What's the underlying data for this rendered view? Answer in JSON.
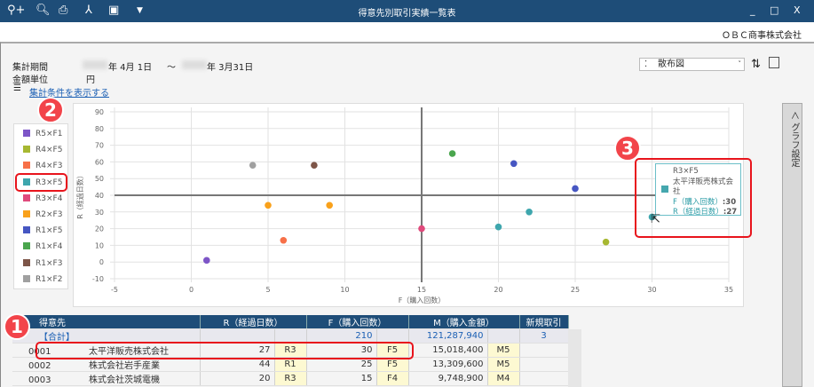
{
  "window": {
    "title": "得意先別取引実績一覧表",
    "toolbar_icons": [
      "zoom-in-icon",
      "preview-icon",
      "print-icon",
      "pdf-icon",
      "excel-icon",
      "dropdown-icon"
    ],
    "minimize": "_",
    "maximize": "□",
    "close": "X"
  },
  "company": "ＯＢＣ商事株式会社",
  "header": {
    "period_label": "集計期間",
    "period_start": "年  4月  1日",
    "tilde": "～",
    "period_end": "年  3月31日",
    "unit_label": "金額単位",
    "unit_value": "円",
    "show_conditions": "集計条件を表示する",
    "chart_type": "散布図"
  },
  "side_panel": {
    "label": "＜ グラフ設定"
  },
  "chart_data": {
    "type": "scatter",
    "xlabel": "F（購入回数）",
    "ylabel": "R（経過日数）",
    "xlim": [
      -5,
      35
    ],
    "ylim": [
      -10,
      90
    ],
    "xticks": [
      -5,
      0,
      5,
      10,
      15,
      20,
      25,
      30,
      35
    ],
    "yticks": [
      -10,
      0,
      10,
      20,
      30,
      40,
      50,
      60,
      70,
      80,
      90
    ],
    "grid": true,
    "legend_position": "left",
    "quadrant_lines": {
      "x": 15,
      "y": 40
    },
    "series": [
      {
        "name": "R5×F1",
        "color": "#7d55c7",
        "points": [
          [
            1,
            1
          ]
        ]
      },
      {
        "name": "R4×F5",
        "color": "#a7b832",
        "points": [
          [
            27,
            12
          ]
        ]
      },
      {
        "name": "R4×F3",
        "color": "#f77048",
        "points": [
          [
            6,
            13
          ]
        ]
      },
      {
        "name": "R3×F5",
        "color": "#3ea6ad",
        "points": [
          [
            20,
            21
          ],
          [
            22,
            30
          ],
          [
            30,
            27
          ]
        ]
      },
      {
        "name": "R3×F4",
        "color": "#e04a7c",
        "points": [
          [
            15,
            20
          ]
        ]
      },
      {
        "name": "R2×F3",
        "color": "#f9a11b",
        "points": [
          [
            5,
            34
          ],
          [
            9,
            34
          ]
        ]
      },
      {
        "name": "R1×F5",
        "color": "#4656c2",
        "points": [
          [
            21,
            59
          ],
          [
            25,
            44
          ]
        ]
      },
      {
        "name": "R1×F4",
        "color": "#4aa64e",
        "points": [
          [
            17,
            65
          ]
        ]
      },
      {
        "name": "R1×F3",
        "color": "#7d5548",
        "points": [
          [
            8,
            58
          ]
        ]
      },
      {
        "name": "R1×F2",
        "color": "#a0a0a0",
        "points": [
          [
            4,
            58
          ]
        ]
      }
    ]
  },
  "tooltip": {
    "series": "R3×F5",
    "customer": "太平洋販売株式会社",
    "f_label": "F（購入回数）",
    "f_value": ":30",
    "r_label": "R（経過日数）",
    "r_value": ":27"
  },
  "table": {
    "headers": [
      "得意先",
      "R（経過日数）",
      "F（購入回数）",
      "M（購入金額）",
      "新規取引"
    ],
    "total": {
      "label": "【合計】",
      "f": "210",
      "m": "121,287,940",
      "new": "3"
    },
    "rows": [
      {
        "code": "0001",
        "name": "太平洋販売株式会社",
        "r": "27",
        "r_rank": "R3",
        "f": "30",
        "f_rank": "F5",
        "m": "15,018,400",
        "m_rank": "M5"
      },
      {
        "code": "0002",
        "name": "株式会社岩手産業",
        "r": "44",
        "r_rank": "R1",
        "f": "25",
        "f_rank": "F5",
        "m": "13,309,600",
        "m_rank": "M5"
      },
      {
        "code": "0003",
        "name": "株式会社茨城電機",
        "r": "20",
        "r_rank": "R3",
        "f": "15",
        "f_rank": "F4",
        "m": "9,748,900",
        "m_rank": "M4"
      }
    ]
  },
  "annotations": [
    "1",
    "2",
    "3"
  ]
}
